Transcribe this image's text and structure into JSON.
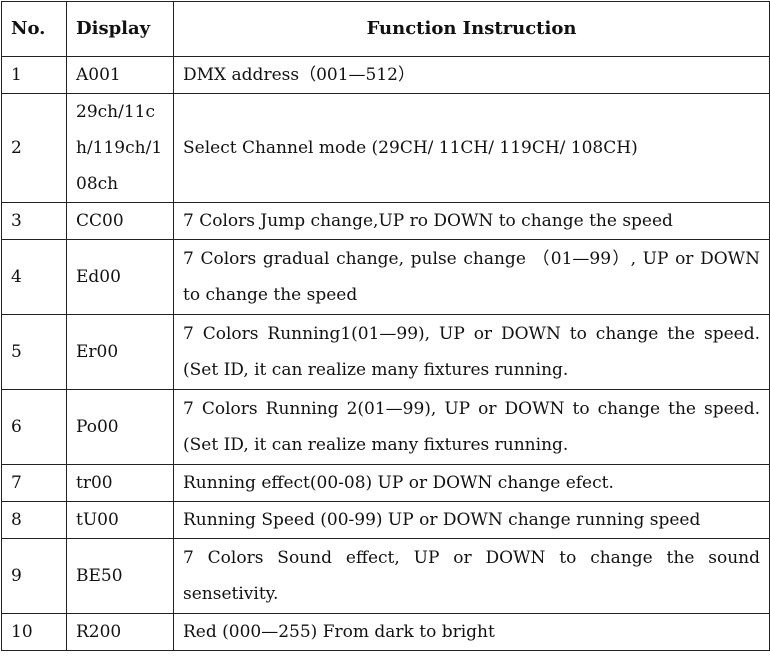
{
  "headers": {
    "no": "No.",
    "display": "Display",
    "function": "Function Instruction"
  },
  "rows": [
    {
      "no": "1",
      "display": "A001",
      "instruction": "DMX address（001—512）"
    },
    {
      "no": "2",
      "display": "29ch/11ch/119ch/108ch",
      "instruction": "Select Channel mode (29CH/ 11CH/ 119CH/ 108CH)"
    },
    {
      "no": "3",
      "display": "CC00",
      "instruction": "7 Colors Jump change,UP ro DOWN to change the speed"
    },
    {
      "no": "4",
      "display": "Ed00",
      "instruction": "7 Colors gradual change, pulse change （01—99）, UP or DOWN to change the speed"
    },
    {
      "no": "5",
      "display": "Er00",
      "instruction": "7 Colors Running1(01—99), UP or DOWN to change the speed. (Set ID, it can realize many fixtures running."
    },
    {
      "no": "6",
      "display": "Po00",
      "instruction": "7 Colors Running 2(01—99), UP or DOWN to change the speed. (Set ID, it can realize many fixtures running."
    },
    {
      "no": "7",
      "display": "tr00",
      "instruction": "Running effect(00-08) UP or DOWN change efect."
    },
    {
      "no": "8",
      "display": "tU00",
      "instruction": "Running Speed (00-99) UP or DOWN change running speed"
    },
    {
      "no": "9",
      "display": "BE50",
      "instruction": "7 Colors Sound effect, UP or DOWN to change the sound sensetivity."
    },
    {
      "no": "10",
      "display": "R200",
      "instruction": "Red (000—255) From dark to bright"
    }
  ]
}
